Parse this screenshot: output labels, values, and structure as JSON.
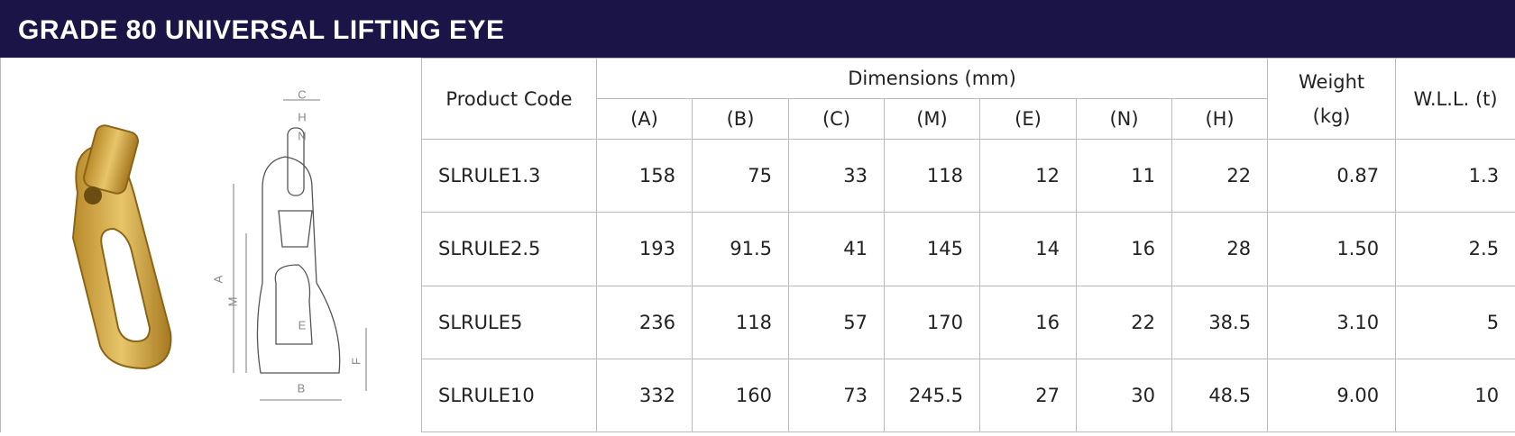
{
  "header": {
    "title": "GRADE 80 UNIVERSAL LIFTING EYE"
  },
  "diagram": {
    "labels": [
      "C",
      "H",
      "N",
      "A",
      "M",
      "E",
      "F",
      "B"
    ]
  },
  "table": {
    "product_code_header": "Product Code",
    "dimensions_header": "Dimensions (mm)",
    "dimension_columns": [
      "(A)",
      "(B)",
      "(C)",
      "(M)",
      "(E)",
      "(N)",
      "(H)"
    ],
    "weight_header": "Weight (kg)",
    "wll_header": "W.L.L. (t)",
    "rows": [
      [
        "SLRULE1.3",
        "158",
        "75",
        "33",
        "118",
        "12",
        "11",
        "22",
        "0.87",
        "1.3"
      ],
      [
        "SLRULE2.5",
        "193",
        "91.5",
        "41",
        "145",
        "14",
        "16",
        "28",
        "1.50",
        "2.5"
      ],
      [
        "SLRULE5",
        "236",
        "118",
        "57",
        "170",
        "16",
        "22",
        "38.5",
        "3.10",
        "5"
      ],
      [
        "SLRULE10",
        "332",
        "160",
        "73",
        "245.5",
        "27",
        "30",
        "48.5",
        "9.00",
        "10"
      ]
    ]
  }
}
